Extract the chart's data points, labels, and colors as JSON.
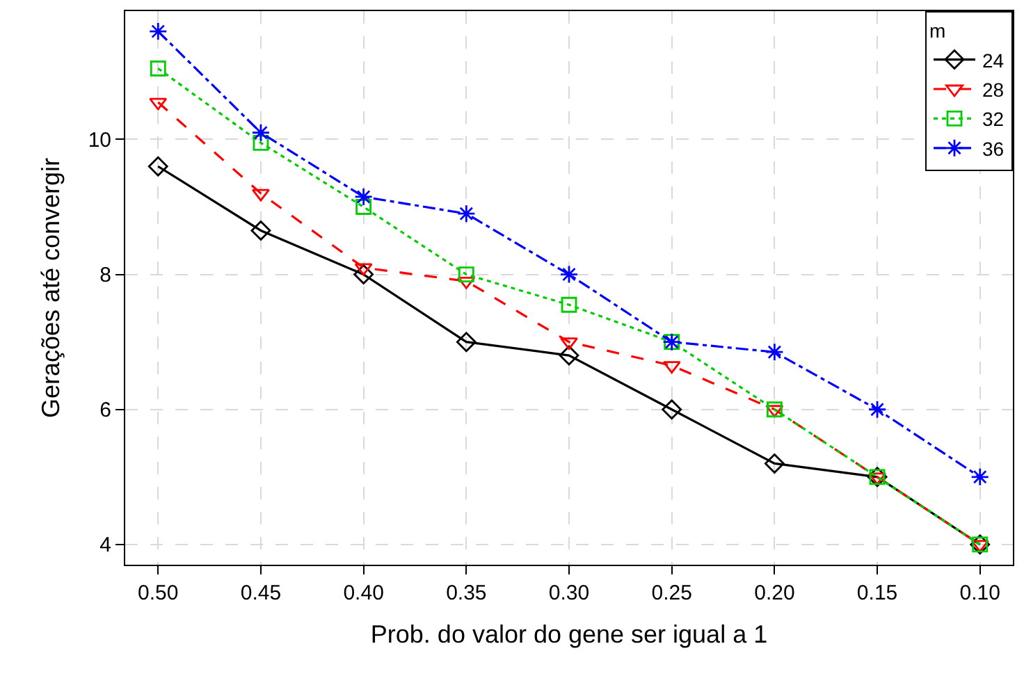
{
  "chart_data": {
    "type": "line",
    "xlabel": "Prob. do valor do gene ser igual a 1",
    "ylabel": "Gerações até convergir",
    "legend_title": "m",
    "legend": "top right",
    "grid": true,
    "x": [
      0.5,
      0.45,
      0.4,
      0.35,
      0.3,
      0.25,
      0.2,
      0.15,
      0.1
    ],
    "xlim": [
      0.516,
      0.084
    ],
    "xticks": [
      {
        "value": 0.5,
        "label": "0.50"
      },
      {
        "value": 0.45,
        "label": "0.45"
      },
      {
        "value": 0.4,
        "label": "0.40"
      },
      {
        "value": 0.35,
        "label": "0.35"
      },
      {
        "value": 0.3,
        "label": "0.30"
      },
      {
        "value": 0.25,
        "label": "0.25"
      },
      {
        "value": 0.2,
        "label": "0.20"
      },
      {
        "value": 0.15,
        "label": "0.15"
      },
      {
        "value": 0.1,
        "label": "0.10"
      }
    ],
    "ylim": [
      3.7,
      11.9
    ],
    "yticks": [
      4,
      6,
      8,
      10
    ],
    "series": [
      {
        "name": "24",
        "color": "#000000",
        "marker": "diamond",
        "line_style": "solid",
        "values": [
          9.6,
          8.65,
          8.0,
          7.0,
          6.8,
          6.0,
          5.2,
          5.0,
          4.0
        ]
      },
      {
        "name": "28",
        "color": "#ff0000",
        "marker": "triangle",
        "line_style": "dashed",
        "values": [
          10.55,
          9.2,
          8.1,
          7.9,
          7.0,
          6.65,
          6.0,
          5.0,
          4.0
        ]
      },
      {
        "name": "32",
        "color": "#00cd00",
        "marker": "square",
        "line_style": "dotted",
        "values": [
          11.05,
          9.95,
          9.0,
          8.0,
          7.55,
          7.0,
          6.0,
          5.0,
          4.0
        ]
      },
      {
        "name": "36",
        "color": "#0000ff",
        "marker": "cross",
        "line_style": "dashdot",
        "values": [
          11.6,
          10.1,
          9.15,
          8.9,
          8.0,
          7.0,
          6.85,
          6.0,
          5.0
        ]
      }
    ]
  }
}
